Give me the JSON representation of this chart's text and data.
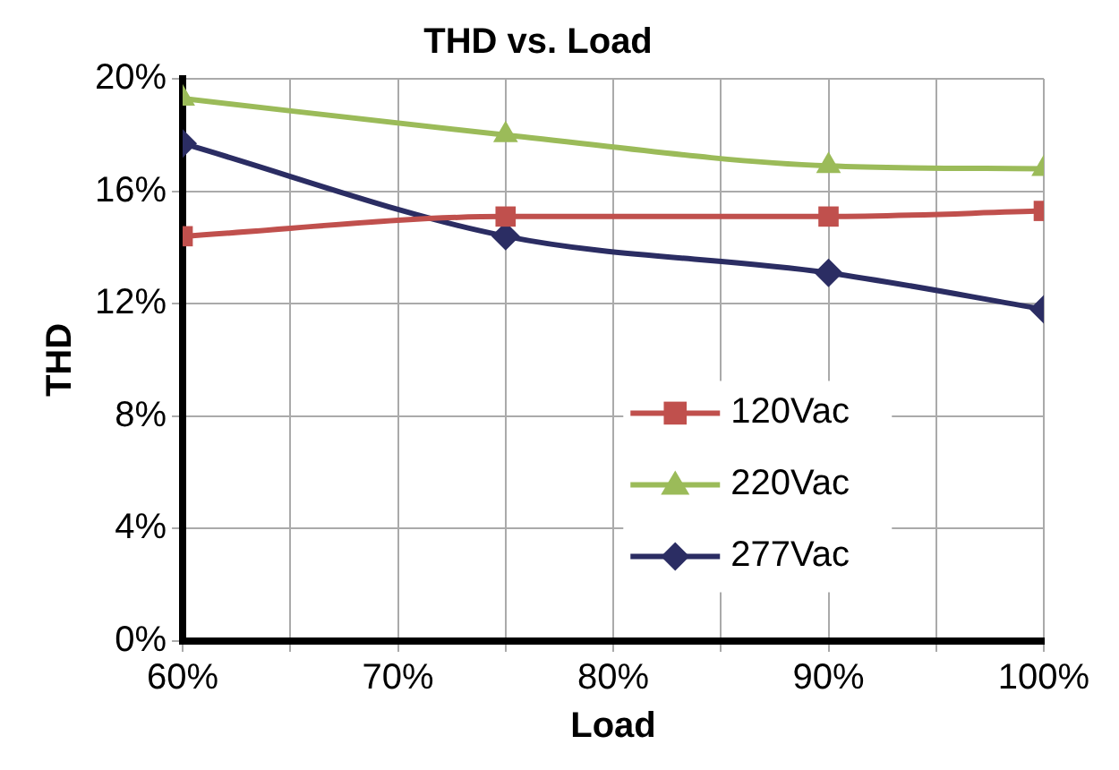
{
  "chart_data": {
    "type": "line",
    "title": "THD vs. Load",
    "xlabel": "Load",
    "ylabel": "THD",
    "x": [
      60,
      75,
      90,
      100
    ],
    "xlim": [
      60,
      100
    ],
    "xticks": [
      {
        "value": 60,
        "label": "60%"
      },
      {
        "value": 65,
        "label": null
      },
      {
        "value": 70,
        "label": "70%"
      },
      {
        "value": 75,
        "label": null
      },
      {
        "value": 80,
        "label": "80%"
      },
      {
        "value": 85,
        "label": null
      },
      {
        "value": 90,
        "label": "90%"
      },
      {
        "value": 95,
        "label": null
      },
      {
        "value": 100,
        "label": "100%"
      }
    ],
    "ylim": [
      0,
      20
    ],
    "yticks": [
      {
        "value": 0,
        "label": "0%"
      },
      {
        "value": 4,
        "label": "4%"
      },
      {
        "value": 8,
        "label": "8%"
      },
      {
        "value": 12,
        "label": "12%"
      },
      {
        "value": 16,
        "label": "16%"
      },
      {
        "value": 20,
        "label": "20%"
      }
    ],
    "grid": true,
    "legend": "right",
    "line_style": "solid",
    "series": [
      {
        "name": "120Vac",
        "color": "#c0504d",
        "marker": "square",
        "values": [
          14.4,
          15.1,
          15.1,
          15.3
        ]
      },
      {
        "name": "220Vac",
        "color": "#9bbb59",
        "marker": "triangle",
        "values": [
          19.3,
          18.0,
          16.9,
          16.8
        ]
      },
      {
        "name": "277Vac",
        "color": "#2b2d63",
        "marker": "diamond",
        "values": [
          17.7,
          14.4,
          13.1,
          11.8
        ]
      }
    ]
  }
}
